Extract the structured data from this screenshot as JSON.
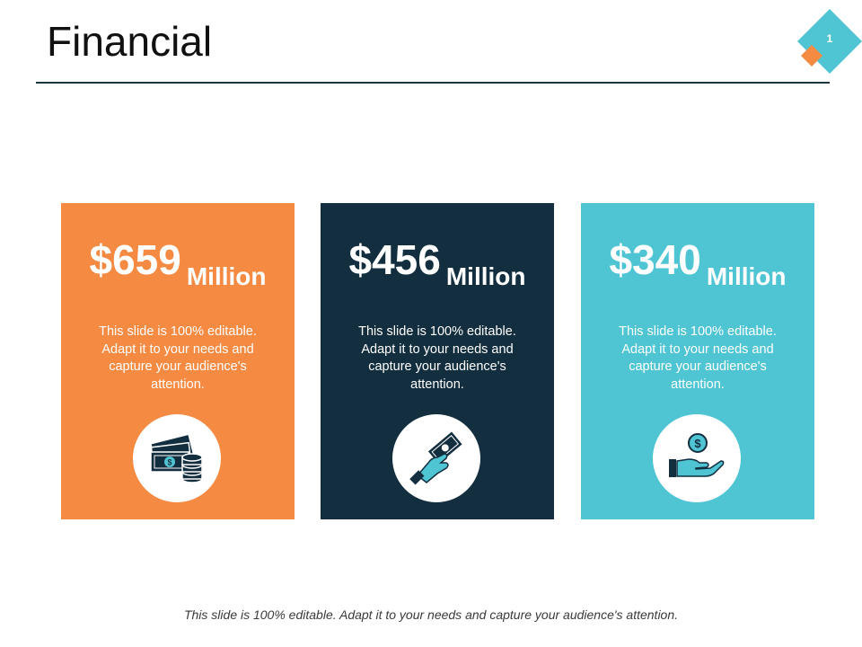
{
  "title": "Financial",
  "slide_number": "1",
  "colors": {
    "orange": "#f58a42",
    "navy": "#132e3f",
    "teal": "#4fc4d3",
    "text_dark": "#111111"
  },
  "cards": [
    {
      "amount": "$659",
      "unit": "Million",
      "description": "This slide is 100% editable. Adapt it to your needs and capture your audience's attention.",
      "icon": "money-stack-coins-icon"
    },
    {
      "amount": "$456",
      "unit": "Million",
      "description": "This slide is 100% editable. Adapt it to your needs and capture your audience's attention.",
      "icon": "hand-holding-banknote-icon"
    },
    {
      "amount": "$340",
      "unit": "Million",
      "description": "This slide is 100% editable. Adapt it to your needs and capture your audience's attention.",
      "icon": "hand-with-coin-icon"
    }
  ],
  "footer": "This slide is 100% editable.  Adapt it to your needs and capture your audience's attention."
}
